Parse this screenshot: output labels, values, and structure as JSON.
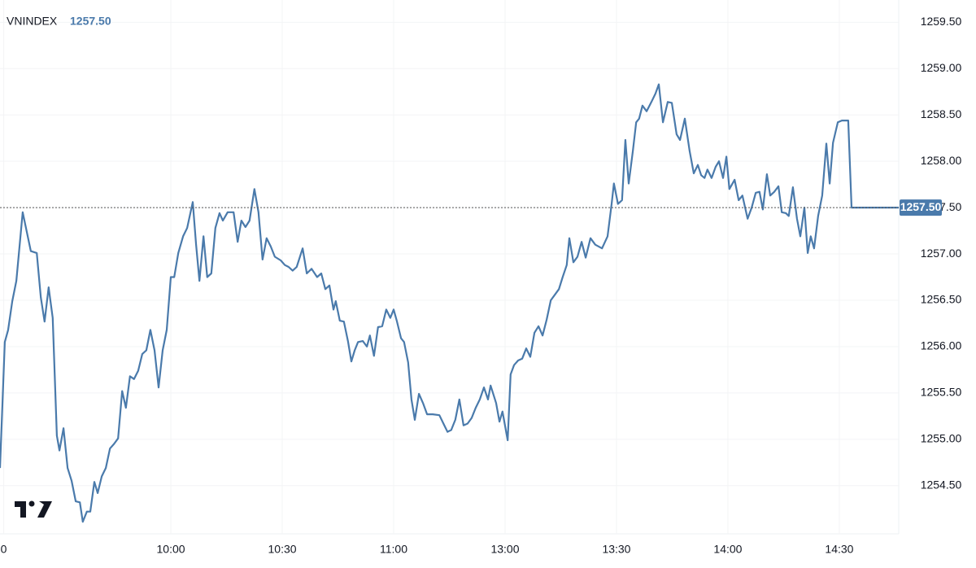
{
  "chart_data": {
    "type": "line",
    "symbol": "VNINDEX",
    "last": {
      "value": 1257.5,
      "label": "1257.50"
    },
    "color": "#4a7aab",
    "grid": true,
    "xlim": [
      -1,
      241
    ],
    "ylim": [
      1253.98,
      1259.74
    ],
    "xticks": [
      {
        "value": 0,
        "label": "0"
      },
      {
        "value": 45,
        "label": "10:00"
      },
      {
        "value": 75,
        "label": "10:30"
      },
      {
        "value": 105,
        "label": "11:00"
      },
      {
        "value": 135,
        "label": "13:00"
      },
      {
        "value": 165,
        "label": "13:30"
      },
      {
        "value": 195,
        "label": "14:00"
      },
      {
        "value": 225,
        "label": "14:30"
      }
    ],
    "yticks": [
      {
        "value": 1254.5,
        "label": "1254.50"
      },
      {
        "value": 1255,
        "label": "1255.00"
      },
      {
        "value": 1255.5,
        "label": "1255.50"
      },
      {
        "value": 1256,
        "label": "1256.00"
      },
      {
        "value": 1256.5,
        "label": "1256.50"
      },
      {
        "value": 1257,
        "label": "1257.00"
      },
      {
        "value": 1257.5,
        "label": "1257.50"
      },
      {
        "value": 1258,
        "label": "1258.00"
      },
      {
        "value": 1258.5,
        "label": "1258.50"
      },
      {
        "value": 1259,
        "label": "1259.00"
      },
      {
        "value": 1259.5,
        "label": "1259.50"
      }
    ],
    "x": [
      -1.0,
      0.3,
      1.2,
      2.3,
      3.4,
      5.1,
      7.3,
      8.9,
      10.0,
      11.0,
      12.1,
      13.2,
      14.3,
      15.0,
      16.1,
      17.2,
      18.3,
      19.4,
      20.5,
      21.3,
      22.4,
      23.3,
      24.4,
      25.3,
      26.4,
      27.5,
      28.6,
      29.7,
      30.8,
      31.9,
      32.9,
      34.0,
      35.1,
      36.2,
      37.3,
      38.4,
      39.5,
      40.6,
      41.7,
      42.8,
      43.9,
      45.0,
      45.9,
      47.0,
      48.3,
      49.4,
      50.9,
      51.8,
      52.7,
      53.8,
      54.8,
      55.9,
      57.0,
      58.1,
      59.0,
      60.3,
      61.9,
      63.0,
      64.0,
      65.1,
      66.2,
      67.5,
      68.6,
      69.7,
      70.8,
      71.9,
      73.0,
      74.6,
      75.7,
      76.7,
      77.8,
      78.9,
      80.5,
      81.6,
      82.9,
      84.4,
      85.5,
      86.6,
      87.7,
      88.8,
      89.4,
      90.5,
      91.6,
      92.7,
      93.6,
      94.5,
      95.4,
      96.7,
      97.8,
      98.6,
      99.7,
      100.8,
      101.9,
      103.0,
      104.1,
      105.0,
      105.9,
      107.0,
      107.8,
      108.9,
      109.8,
      110.7,
      111.8,
      112.9,
      114.0,
      115.5,
      117.3,
      118.4,
      119.5,
      120.5,
      121.6,
      122.7,
      123.8,
      124.9,
      126.0,
      127.1,
      128.2,
      129.3,
      130.4,
      131.1,
      131.9,
      132.6,
      133.5,
      134.3,
      135.7,
      136.5,
      137.4,
      138.5,
      139.6,
      140.7,
      141.8,
      142.9,
      144.0,
      145.1,
      146.2,
      147.3,
      148.4,
      149.5,
      150.5,
      151.6,
      152.3,
      153.4,
      154.5,
      155.6,
      156.7,
      158.0,
      159.3,
      161.1,
      162.6,
      163.7,
      164.3,
      165.4,
      166.5,
      167.4,
      168.3,
      169.4,
      170.3,
      171.1,
      172.0,
      173.1,
      174.4,
      175.5,
      176.4,
      177.5,
      178.8,
      179.9,
      181.2,
      182.1,
      183.4,
      184.7,
      185.8,
      186.9,
      187.8,
      188.7,
      189.5,
      190.6,
      191.7,
      192.6,
      193.7,
      194.6,
      195.4,
      196.8,
      197.9,
      198.9,
      200.3,
      201.4,
      202.5,
      203.5,
      204.4,
      205.5,
      206.4,
      207.5,
      208.6,
      209.5,
      210.6,
      211.4,
      212.5,
      213.6,
      214.5,
      215.6,
      216.5,
      217.3,
      218.2,
      219.3,
      220.4,
      221.5,
      222.4,
      223.3,
      224.6,
      225.7,
      227.4,
      228.3,
      241.0
    ],
    "values": [
      1254.69,
      1256.05,
      1256.18,
      1256.49,
      1256.71,
      1257.45,
      1257.03,
      1257.01,
      1256.53,
      1256.27,
      1256.64,
      1256.31,
      1255.04,
      1254.88,
      1255.12,
      1254.69,
      1254.55,
      1254.33,
      1254.32,
      1254.11,
      1254.22,
      1254.22,
      1254.54,
      1254.42,
      1254.6,
      1254.69,
      1254.9,
      1254.95,
      1255.01,
      1255.52,
      1255.34,
      1255.68,
      1255.65,
      1255.74,
      1255.92,
      1255.96,
      1256.18,
      1255.96,
      1255.56,
      1255.96,
      1256.18,
      1256.75,
      1256.75,
      1257.01,
      1257.19,
      1257.28,
      1257.56,
      1257.1,
      1256.71,
      1257.19,
      1256.75,
      1256.79,
      1257.28,
      1257.44,
      1257.36,
      1257.45,
      1257.45,
      1257.13,
      1257.36,
      1257.29,
      1257.36,
      1257.7,
      1257.45,
      1256.94,
      1257.17,
      1257.08,
      1256.97,
      1256.93,
      1256.88,
      1256.86,
      1256.82,
      1256.86,
      1257.06,
      1256.79,
      1256.84,
      1256.75,
      1256.79,
      1256.62,
      1256.66,
      1256.4,
      1256.49,
      1256.28,
      1256.27,
      1256.06,
      1255.84,
      1255.96,
      1256.05,
      1256.06,
      1256.0,
      1256.12,
      1255.9,
      1256.21,
      1256.22,
      1256.4,
      1256.31,
      1256.4,
      1256.27,
      1256.09,
      1256.05,
      1255.83,
      1255.43,
      1255.21,
      1255.49,
      1255.39,
      1255.27,
      1255.27,
      1255.26,
      1255.17,
      1255.08,
      1255.1,
      1255.21,
      1255.43,
      1255.15,
      1255.17,
      1255.23,
      1255.34,
      1255.43,
      1255.56,
      1255.43,
      1255.58,
      1255.48,
      1255.39,
      1255.19,
      1255.3,
      1254.99,
      1255.7,
      1255.8,
      1255.85,
      1255.87,
      1255.98,
      1255.89,
      1256.15,
      1256.22,
      1256.12,
      1256.29,
      1256.5,
      1256.56,
      1256.62,
      1256.75,
      1256.88,
      1257.17,
      1256.91,
      1256.97,
      1257.13,
      1256.96,
      1257.17,
      1257.1,
      1257.06,
      1257.19,
      1257.54,
      1257.76,
      1257.54,
      1257.58,
      1258.23,
      1257.76,
      1258.11,
      1258.42,
      1258.46,
      1258.6,
      1258.54,
      1258.64,
      1258.73,
      1258.83,
      1258.42,
      1258.64,
      1258.63,
      1258.29,
      1258.23,
      1258.46,
      1258.11,
      1257.87,
      1257.96,
      1257.85,
      1257.82,
      1257.91,
      1257.82,
      1257.94,
      1258.0,
      1257.82,
      1258.05,
      1257.7,
      1257.8,
      1257.58,
      1257.63,
      1257.38,
      1257.5,
      1257.66,
      1257.67,
      1257.48,
      1257.86,
      1257.63,
      1257.67,
      1257.73,
      1257.45,
      1257.44,
      1257.41,
      1257.72,
      1257.38,
      1257.19,
      1257.5,
      1257.01,
      1257.19,
      1257.06,
      1257.41,
      1257.63,
      1258.19,
      1257.76,
      1258.2,
      1258.42,
      1258.44,
      1258.44,
      1257.5,
      1257.5
    ]
  }
}
